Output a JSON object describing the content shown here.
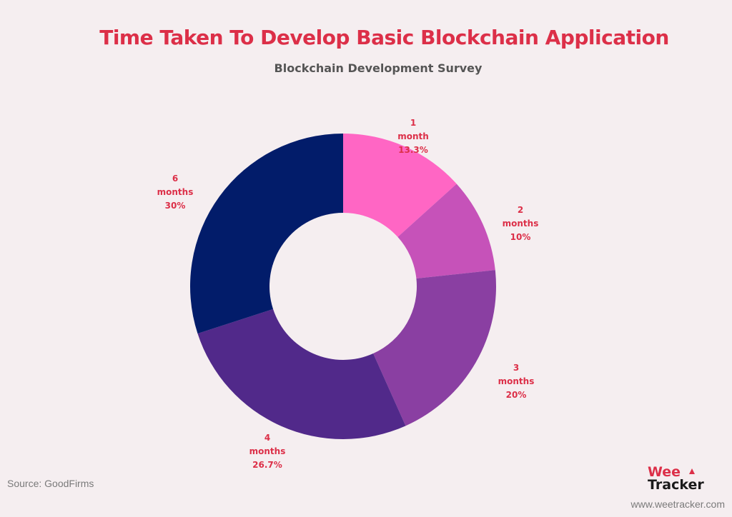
{
  "chart_data": {
    "type": "pie",
    "title": "Time Taken To Develop Basic Blockchain Application",
    "subtitle": "Blockchain Development Survey",
    "slices": [
      {
        "label": "1 month",
        "value": 13.3,
        "value_text": "13.3%",
        "color": "#ff66c4"
      },
      {
        "label": "2 months",
        "value": 10,
        "value_text": "10%",
        "color": "#c652b9"
      },
      {
        "label": "3 months",
        "value": 20,
        "value_text": "20%",
        "color": "#8a3fa2"
      },
      {
        "label": "4 months",
        "value": 26.7,
        "value_text": "26.7%",
        "color": "#51298a"
      },
      {
        "label": "6 months",
        "value": 30,
        "value_text": "30%",
        "color": "#021c6a"
      }
    ],
    "label_color": "#dc2f48",
    "legend": "none"
  },
  "footer": {
    "source": "Source: GoodFirms",
    "website": "www.weetracker.com"
  },
  "logo": {
    "line1": "Wee",
    "line2": "Tracker"
  },
  "colors": {
    "background": "#f5eef0",
    "title": "#dc2f48",
    "subtitle": "#555555"
  }
}
